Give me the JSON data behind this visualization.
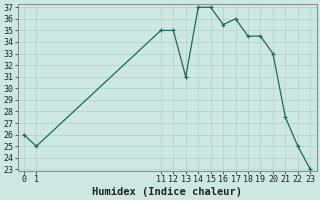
{
  "x": [
    0,
    1,
    11,
    12,
    13,
    14,
    15,
    16,
    17,
    18,
    19,
    20,
    21,
    22,
    23
  ],
  "y": [
    26,
    25,
    35,
    35,
    31,
    37,
    37,
    35.5,
    36,
    34.5,
    34.5,
    33,
    27.5,
    25,
    23
  ],
  "line_color": "#1a6b5a",
  "marker_color": "#1a6b5a",
  "bg_color": "#cce8e0",
  "grid_color": "#b0d0c8",
  "xlabel": "Humidex (Indice chaleur)",
  "ylim_min": 23,
  "ylim_max": 37,
  "xlim_min": -0.5,
  "xlim_max": 23.5,
  "yticks": [
    23,
    24,
    25,
    26,
    27,
    28,
    29,
    30,
    31,
    32,
    33,
    34,
    35,
    36,
    37
  ],
  "xticks": [
    0,
    1,
    11,
    12,
    13,
    14,
    15,
    16,
    17,
    18,
    19,
    20,
    21,
    22,
    23
  ],
  "tick_fontsize": 6,
  "xlabel_fontsize": 7.5,
  "tick_color": "#222222",
  "spine_color": "#888888"
}
